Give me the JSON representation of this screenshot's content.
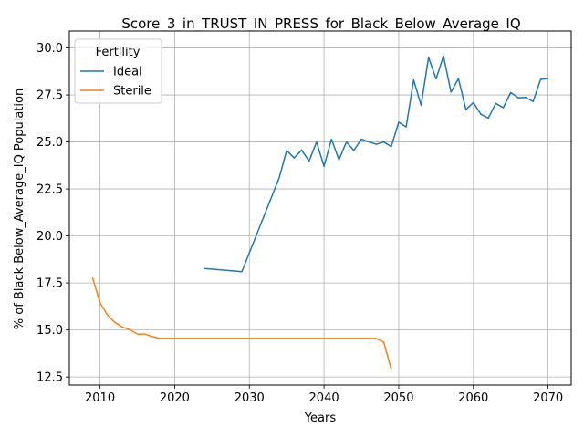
{
  "chart_data": {
    "type": "line",
    "title": "Score_3_in_TRUST_IN_PRESS_for_Black_Below_Average_IQ",
    "xlabel": "Years",
    "ylabel": "% of Black Below_Average_IQ Population",
    "xlim": [
      2005.9,
      2073.1
    ],
    "ylim": [
      12.07,
      30.9
    ],
    "xticks": [
      2010,
      2020,
      2030,
      2040,
      2050,
      2060,
      2070
    ],
    "yticks": [
      12.5,
      15.0,
      17.5,
      20.0,
      22.5,
      25.0,
      27.5,
      30.0
    ],
    "ytick_labels": [
      "12.5",
      "15.0",
      "17.5",
      "20.0",
      "22.5",
      "25.0",
      "27.5",
      "30.0"
    ],
    "grid": true,
    "legend": {
      "title": "Fertility",
      "placement": "top-left"
    },
    "series": [
      {
        "name": "Ideal",
        "color": "#1f77b4",
        "x": [
          2024,
          2029,
          2034,
          2035,
          2036,
          2037,
          2038,
          2039,
          2040,
          2041,
          2042,
          2043,
          2044,
          2045,
          2046,
          2047,
          2048,
          2049,
          2050,
          2051,
          2052,
          2053,
          2054,
          2055,
          2056,
          2057,
          2058,
          2059,
          2060,
          2061,
          2062,
          2063,
          2064,
          2065,
          2066,
          2067,
          2068,
          2069,
          2070
        ],
        "y": [
          18.27,
          18.1,
          23.1,
          24.55,
          24.15,
          24.57,
          23.98,
          25.0,
          23.7,
          25.15,
          24.05,
          25.0,
          24.55,
          25.15,
          25.0,
          24.88,
          25.0,
          24.75,
          26.05,
          25.8,
          28.3,
          26.95,
          29.5,
          28.35,
          29.57,
          27.65,
          28.37,
          26.72,
          27.1,
          26.47,
          26.27,
          27.05,
          26.82,
          27.63,
          27.35,
          27.37,
          27.15,
          28.33,
          28.37
        ]
      },
      {
        "name": "Sterile",
        "color": "#ff7f0e",
        "x": [
          2009,
          2010,
          2011,
          2012,
          2013,
          2014,
          2015,
          2016,
          2017,
          2018,
          2019,
          2020,
          2025,
          2030,
          2035,
          2040,
          2045,
          2046,
          2047,
          2048,
          2049
        ],
        "y": [
          17.8,
          16.45,
          15.8,
          15.4,
          15.15,
          15.02,
          14.78,
          14.78,
          14.65,
          14.55,
          14.55,
          14.55,
          14.55,
          14.55,
          14.55,
          14.55,
          14.55,
          14.55,
          14.55,
          14.35,
          12.9
        ]
      }
    ]
  }
}
